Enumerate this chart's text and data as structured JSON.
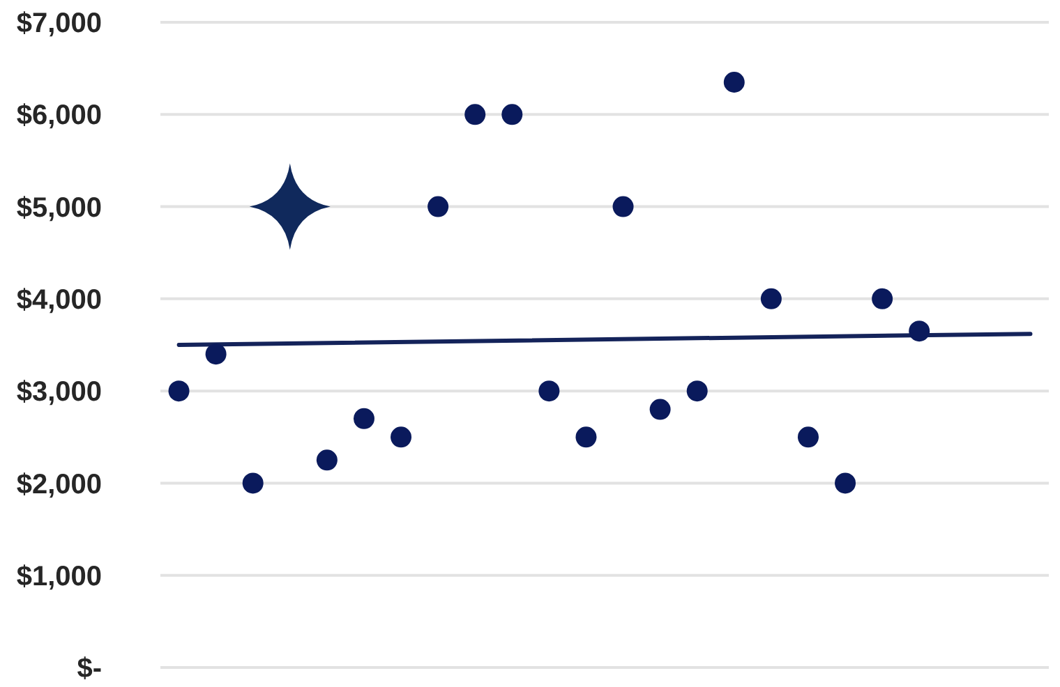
{
  "chart_data": {
    "type": "scatter",
    "categories": [
      null,
      null,
      null,
      null,
      null,
      null,
      null,
      null,
      null,
      null,
      null,
      null,
      null,
      null,
      null,
      null,
      null,
      null,
      null,
      null,
      null,
      null,
      null,
      null
    ],
    "series": [
      {
        "type": "line",
        "color": "#14235a",
        "line_style": "solid",
        "marker": "none",
        "values": [
          3500,
          null,
          null,
          null,
          null,
          null,
          null,
          null,
          null,
          null,
          null,
          null,
          null,
          null,
          null,
          null,
          null,
          null,
          null,
          null,
          null,
          null,
          null,
          3620
        ]
      },
      {
        "color": "#0a1a5c",
        "marker": "circle",
        "values": [
          3000,
          3400,
          2000,
          null,
          2250,
          2700,
          2500,
          5000,
          6000,
          6000,
          3000,
          2500,
          5000,
          2800,
          3000,
          6350,
          4000,
          2500,
          2000,
          4000,
          3650,
          null,
          null,
          null
        ]
      },
      {
        "color": "#10295c",
        "marker": "star",
        "values": [
          null,
          null,
          null,
          5000,
          null,
          null,
          null,
          null,
          null,
          null,
          null,
          null,
          null,
          null,
          null,
          null,
          null,
          null,
          null,
          null,
          null,
          null,
          null,
          null
        ]
      }
    ],
    "ylim": [
      0,
      7000
    ],
    "yticks": [
      {
        "value": 0,
        "label": "$-"
      },
      {
        "value": 1000,
        "label": "$1,000"
      },
      {
        "value": 2000,
        "label": "$2,000"
      },
      {
        "value": 3000,
        "label": "$3,000"
      },
      {
        "value": 4000,
        "label": "$4,000"
      },
      {
        "value": 5000,
        "label": "$5,000"
      },
      {
        "value": 6000,
        "label": "$6,000"
      },
      {
        "value": 7000,
        "label": "$7,000"
      }
    ],
    "grid": "y"
  }
}
